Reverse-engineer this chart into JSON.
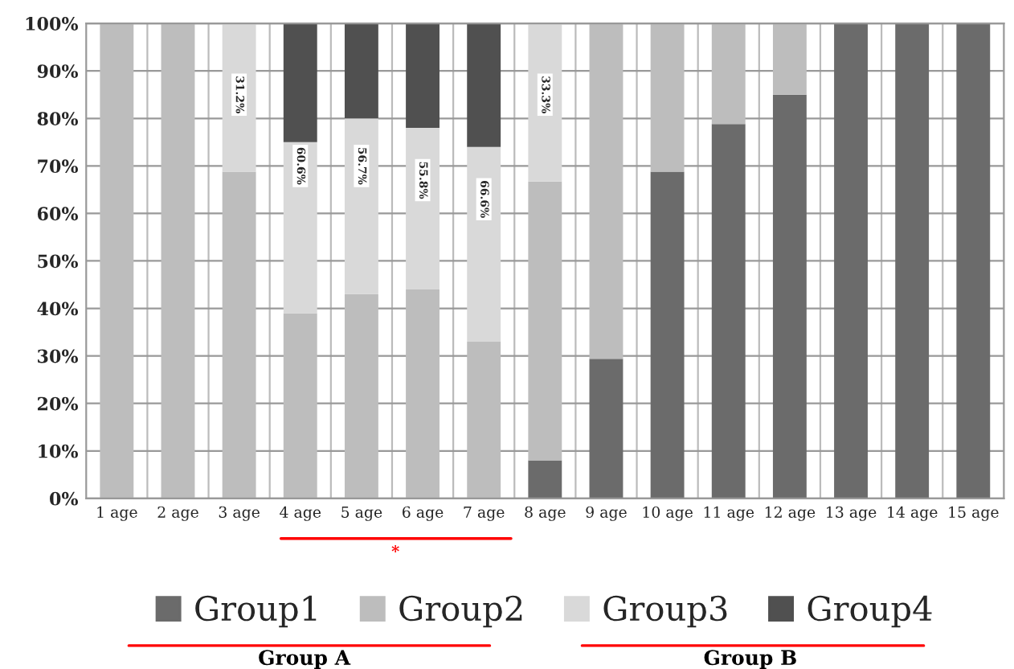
{
  "chart_data": {
    "type": "bar",
    "stacked": true,
    "categories": [
      "1 age",
      "2 age",
      "3 age",
      "4 age",
      "5 age",
      "6 age",
      "7 age",
      "8 age",
      "9 age",
      "10 age",
      "11 age",
      "12 age",
      "13 age",
      "14 age",
      "15 age"
    ],
    "series": [
      {
        "name": "Group1",
        "color": "#6b6b6b",
        "values": [
          0,
          0,
          0,
          0,
          0,
          0,
          0,
          8,
          29.4,
          68.8,
          78.8,
          85,
          100,
          100,
          100
        ]
      },
      {
        "name": "Group2",
        "color": "#bdbdbd",
        "values": [
          100,
          100,
          68.8,
          39,
          43,
          44,
          33,
          58.7,
          70.6,
          31.2,
          21.2,
          15,
          0,
          0,
          0
        ]
      },
      {
        "name": "Group3",
        "color": "#d9d9d9",
        "values": [
          0,
          0,
          31.2,
          36,
          37,
          34,
          41,
          33.3,
          0,
          0,
          0,
          0,
          0,
          0,
          0
        ]
      },
      {
        "name": "Group4",
        "color": "#505050",
        "values": [
          0,
          0,
          0,
          25,
          20,
          22,
          26,
          0,
          0,
          0,
          0,
          0,
          0,
          0,
          0
        ]
      }
    ],
    "ylim": [
      0,
      100
    ],
    "yticks": [
      {
        "value": 0,
        "label": "0%"
      },
      {
        "value": 10,
        "label": "10%"
      },
      {
        "value": 20,
        "label": "20%"
      },
      {
        "value": 30,
        "label": "30%"
      },
      {
        "value": 40,
        "label": "40%"
      },
      {
        "value": 50,
        "label": "50%"
      },
      {
        "value": 60,
        "label": "60%"
      },
      {
        "value": 70,
        "label": "70%"
      },
      {
        "value": 80,
        "label": "80%"
      },
      {
        "value": 90,
        "label": "90%"
      },
      {
        "value": 100,
        "label": "100%"
      }
    ],
    "grid": true,
    "legend": "bottom",
    "annotations": [
      {
        "text": "31.2%",
        "x": "3 age",
        "y": 85
      },
      {
        "text": "60.6%",
        "x": "4 age",
        "y": 70
      },
      {
        "text": "56.7%",
        "x": "5 age",
        "y": 70
      },
      {
        "text": "55.8%",
        "x": "6 age",
        "y": 67
      },
      {
        "text": "66.6%",
        "x": "7 age",
        "y": 63
      },
      {
        "text": "33.3%",
        "x": "8 age",
        "y": 85
      },
      "*",
      "Group A",
      "Group B"
    ]
  }
}
